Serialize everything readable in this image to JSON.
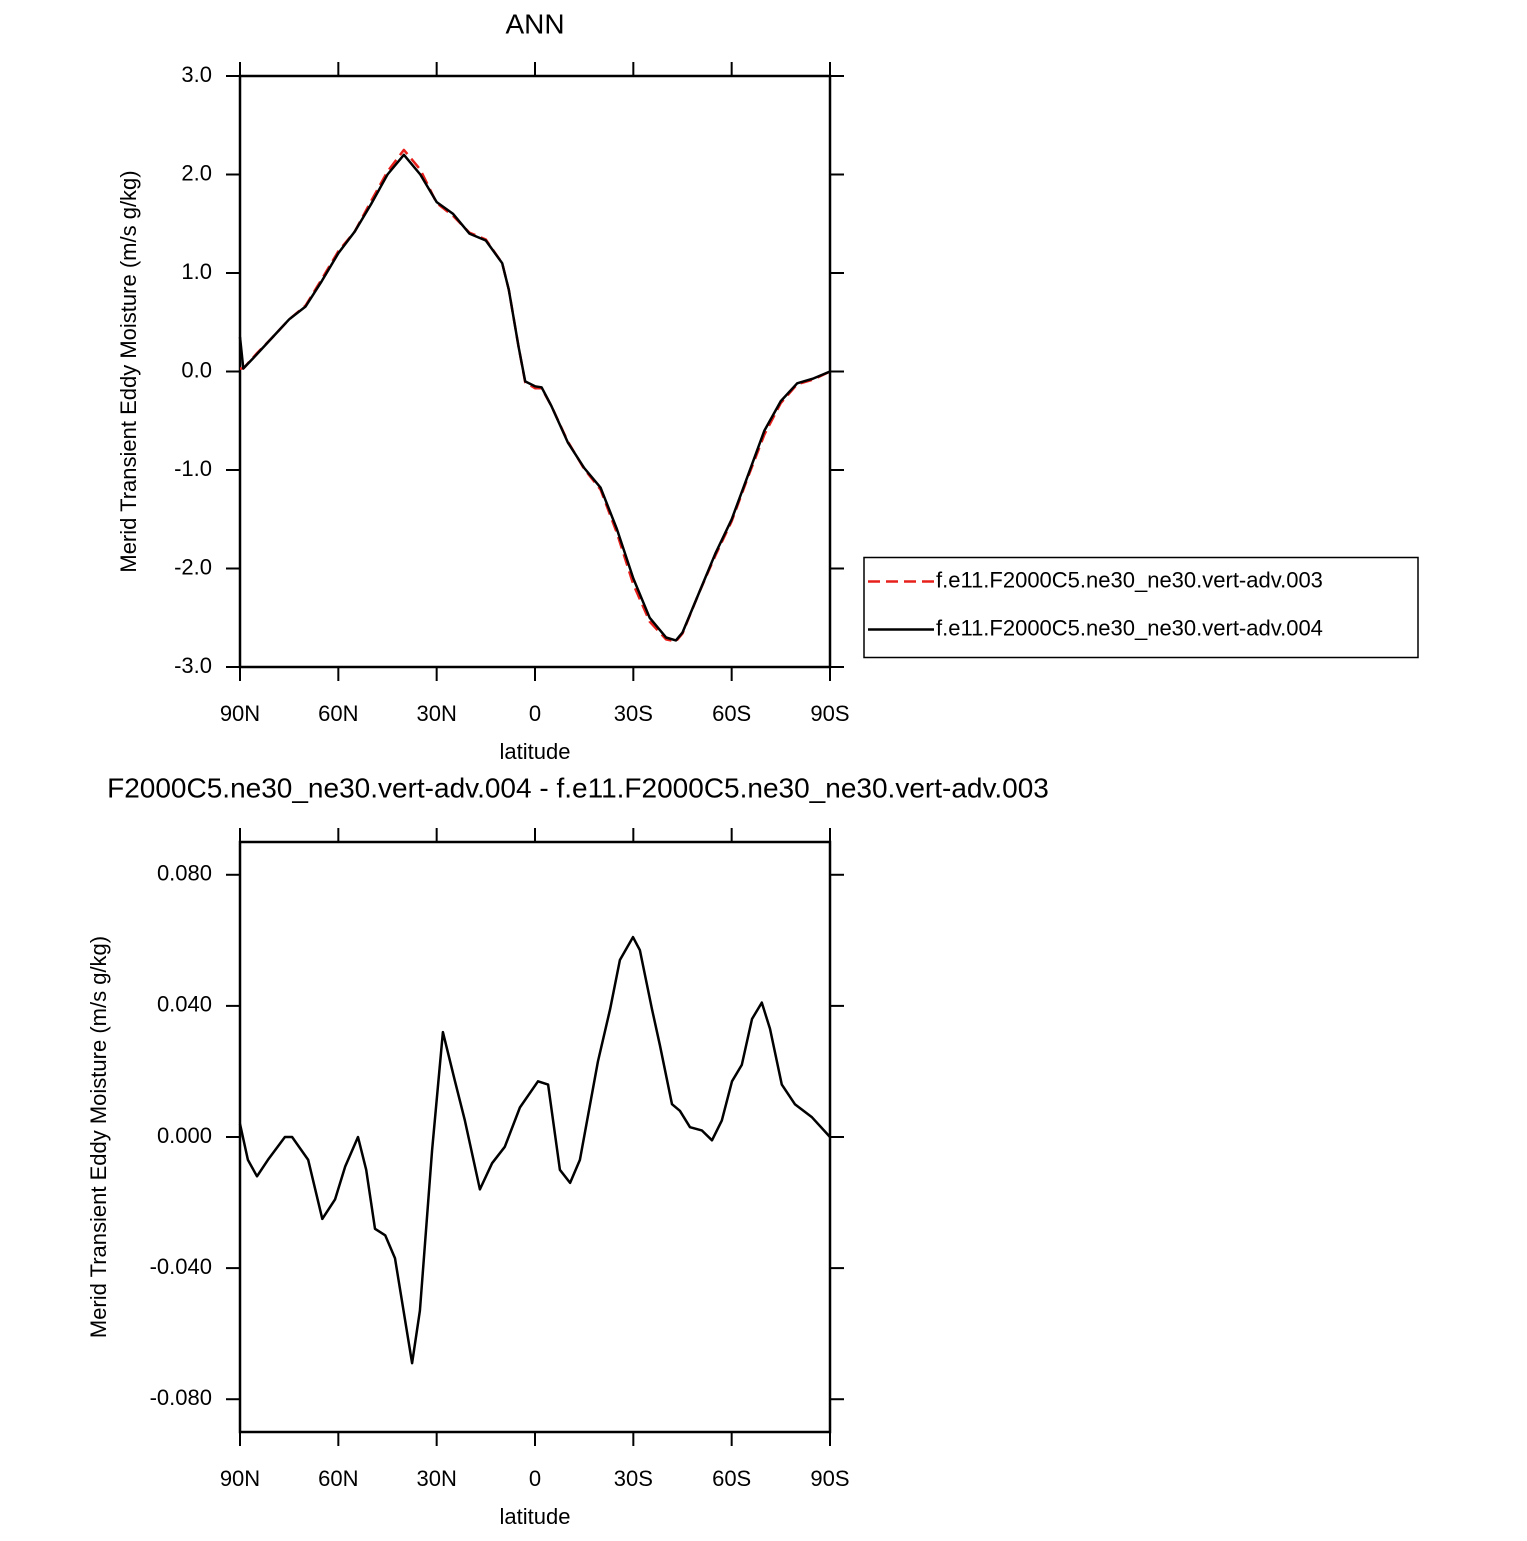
{
  "chart_data": [
    {
      "type": "line",
      "title": "ANN",
      "xlabel": "latitude",
      "ylabel": "Merid Transient Eddy Moisture (m/s g/kg)",
      "x": [
        90,
        89,
        85,
        80,
        75,
        70,
        65,
        60,
        55,
        50,
        45,
        40,
        35,
        30,
        25,
        20,
        15,
        10,
        8,
        5,
        3,
        0,
        -2,
        -5,
        -10,
        -15,
        -20,
        -25,
        -30,
        -35,
        -40,
        -43,
        -45,
        -50,
        -55,
        -60,
        -65,
        -70,
        -75,
        -80,
        -85,
        -90
      ],
      "series": [
        {
          "name": "f.e11.F2000C5.ne30_ne30.vert-adv.003",
          "color": "#e8201c",
          "line_style": "dashed",
          "values": [
            0.03,
            0.03,
            0.18,
            0.35,
            0.53,
            0.67,
            0.94,
            1.22,
            1.42,
            1.73,
            2.03,
            2.25,
            2.05,
            1.71,
            1.58,
            1.41,
            1.34,
            1.1,
            0.83,
            0.25,
            -0.11,
            -0.17,
            -0.17,
            -0.35,
            -0.71,
            -0.99,
            -1.2,
            -1.64,
            -2.16,
            -2.54,
            -2.72,
            -2.74,
            -2.66,
            -2.25,
            -1.87,
            -1.52,
            -1.07,
            -0.64,
            -0.32,
            -0.13,
            -0.08,
            0.0
          ]
        },
        {
          "name": "f.e11.F2000C5.ne30_ne30.vert-adv.004",
          "color": "#000000",
          "line_style": "solid",
          "values": [
            0.35,
            0.03,
            0.17,
            0.35,
            0.53,
            0.66,
            0.92,
            1.2,
            1.42,
            1.7,
            2.0,
            2.2,
            2.0,
            1.72,
            1.6,
            1.4,
            1.33,
            1.1,
            0.83,
            0.25,
            -0.1,
            -0.15,
            -0.16,
            -0.35,
            -0.72,
            -0.98,
            -1.18,
            -1.6,
            -2.1,
            -2.5,
            -2.7,
            -2.73,
            -2.65,
            -2.25,
            -1.85,
            -1.5,
            -1.05,
            -0.6,
            -0.3,
            -0.12,
            -0.07,
            0.0
          ]
        }
      ],
      "xlim": [
        90,
        -90
      ],
      "xticks": [
        {
          "value": 90,
          "label": "90N"
        },
        {
          "value": 60,
          "label": "60N"
        },
        {
          "value": 30,
          "label": "30N"
        },
        0,
        {
          "value": -30,
          "label": "30S"
        },
        {
          "value": -60,
          "label": "60S"
        },
        {
          "value": -90,
          "label": "90S"
        }
      ],
      "ylim": [
        -3,
        3
      ],
      "yticks": [
        {
          "value": -3,
          "label": "-3.0"
        },
        {
          "value": -2,
          "label": "-2.0"
        },
        {
          "value": -1,
          "label": "-1.0"
        },
        {
          "value": 0,
          "label": "0.0"
        },
        {
          "value": 1,
          "label": "1.0"
        },
        {
          "value": 2,
          "label": "2.0"
        },
        {
          "value": 3,
          "label": "3.0"
        }
      ],
      "legend": "right"
    },
    {
      "type": "line",
      "title": "F2000C5.ne30_ne30.vert-adv.004 - f.e11.F2000C5.ne30_ne30.vert-adv.003",
      "xlabel": "latitude",
      "ylabel": "Merid Transient Eddy Moisture (m/s g/kg)",
      "x": [
        90,
        87.6,
        84.8,
        81.5,
        76.3,
        74.1,
        69.2,
        64.9,
        61.0,
        57.9,
        54.0,
        51.5,
        48.8,
        45.7,
        42.7,
        37.5,
        35.1,
        31.4,
        28.1,
        24.4,
        21.4,
        16.8,
        13.1,
        9.2,
        4.6,
        -0.9,
        -4.0,
        -7.6,
        -10.7,
        -13.7,
        -19.2,
        -22.9,
        -25.9,
        -29.9,
        -32.0,
        -35.7,
        -38.1,
        -41.8,
        -44.2,
        -47.3,
        -50.9,
        -54.0,
        -57.0,
        -60.1,
        -63.1,
        -66.2,
        -69.2,
        -71.7,
        -75.3,
        -79.3,
        -84.5,
        -90
      ],
      "series": [
        {
          "color": "#000000",
          "line_style": "solid",
          "values": [
            0.004,
            -0.007,
            -0.012,
            -0.007,
            0.0,
            0.0,
            -0.007,
            -0.025,
            -0.019,
            -0.009,
            0.0,
            -0.01,
            -0.028,
            -0.03,
            -0.037,
            -0.069,
            -0.053,
            -0.004,
            0.032,
            0.017,
            0.005,
            -0.016,
            -0.008,
            -0.003,
            0.009,
            0.017,
            0.016,
            -0.01,
            -0.014,
            -0.007,
            0.023,
            0.039,
            0.054,
            0.061,
            0.057,
            0.039,
            0.028,
            0.01,
            0.008,
            0.003,
            0.002,
            -0.001,
            0.005,
            0.017,
            0.022,
            0.036,
            0.041,
            0.033,
            0.016,
            0.01,
            0.006,
            0.0
          ]
        }
      ],
      "xlim": [
        90,
        -90
      ],
      "xticks": [
        {
          "value": 90,
          "label": "90N"
        },
        {
          "value": 60,
          "label": "60N"
        },
        {
          "value": 30,
          "label": "30N"
        },
        0,
        {
          "value": -30,
          "label": "30S"
        },
        {
          "value": -60,
          "label": "60S"
        },
        {
          "value": -90,
          "label": "90S"
        }
      ],
      "ylim": [
        -0.09,
        0.09
      ],
      "yticks": [
        {
          "value": -0.08,
          "label": "-0.080"
        },
        {
          "value": -0.04,
          "label": "-0.040"
        },
        {
          "value": 0,
          "label": "0.000"
        },
        {
          "value": 0.04,
          "label": "0.040"
        },
        {
          "value": 0.08,
          "label": "0.080"
        }
      ]
    }
  ]
}
